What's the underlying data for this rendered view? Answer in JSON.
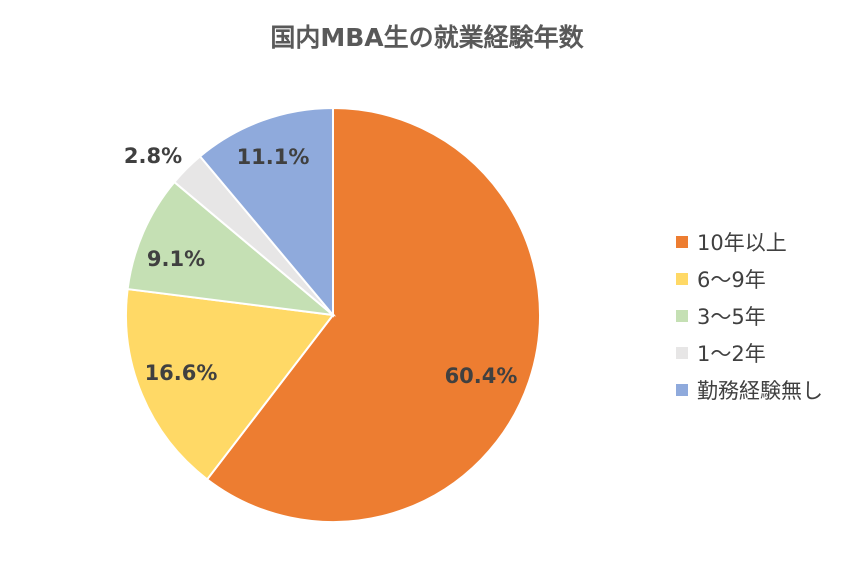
{
  "chart_data": {
    "type": "pie",
    "title": "国内MBA生の就業経験年数",
    "legend_position": "right",
    "start_angle_deg": 0,
    "direction": "clockwise",
    "slices": [
      {
        "label": "10年以上",
        "value": 60.4,
        "display": "60.4%",
        "color": "#ED7D31"
      },
      {
        "label": "6〜9年",
        "value": 16.6,
        "display": "16.6%",
        "color": "#FFD966"
      },
      {
        "label": "3〜5年",
        "value": 9.1,
        "display": "9.1%",
        "color": "#C5E0B4"
      },
      {
        "label": "1〜2年",
        "value": 2.8,
        "display": "2.8%",
        "color": "#E7E6E6"
      },
      {
        "label": "勤務経験無し",
        "value": 11.1,
        "display": "11.1%",
        "color": "#8FAADC"
      }
    ]
  }
}
